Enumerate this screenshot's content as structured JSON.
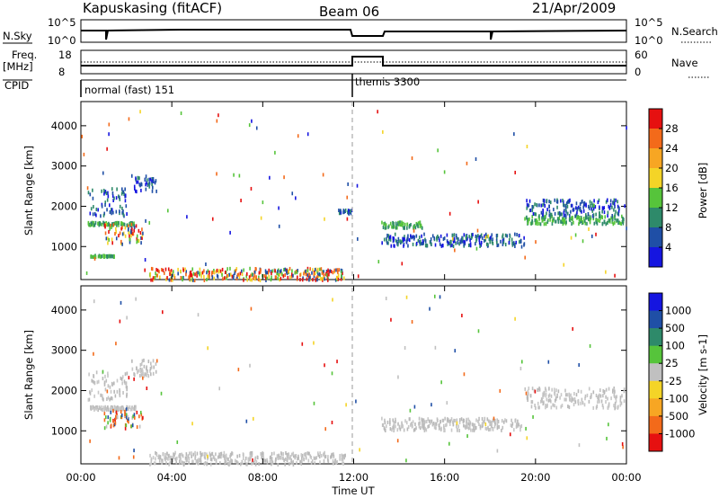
{
  "header": {
    "station": "Kapuskasing (fitACF)",
    "beam": "Beam 06",
    "date": "21/Apr/2009"
  },
  "strips": {
    "noise": {
      "left_label": "N.Sky",
      "right_label": "N.Search",
      "left_ticks": [
        "10^5",
        "10^0"
      ],
      "right_ticks": [
        "10^5",
        "10^0"
      ]
    },
    "freq": {
      "left_label": "Freq.",
      "left_units": "[MHz]",
      "right_label": "Nave",
      "left_ticks": [
        "18",
        "8"
      ],
      "right_ticks": [
        "60",
        "0"
      ]
    },
    "cpid": {
      "label": "CPID",
      "modes": [
        {
          "name": "normal (fast) 151",
          "start_hour": 0
        },
        {
          "name": "themis 3300",
          "start_hour": 12
        }
      ]
    }
  },
  "chart_data": [
    {
      "type": "scatter",
      "panel": "power",
      "ylabel": "Slant Range [km]",
      "yticks": [
        "4000",
        "3000",
        "2000",
        "1000"
      ],
      "ylim": [
        180,
        4600
      ],
      "xlim": [
        0,
        24
      ],
      "colorbar_label": "Power [dB]",
      "colorbar_ticks": [
        "28",
        "24",
        "20",
        "16",
        "12",
        "8",
        "4"
      ],
      "colorbar_colors": [
        "#e61010",
        "#f36a1a",
        "#f7a623",
        "#f4d427",
        "#56c43b",
        "#2e8a6a",
        "#1f4fa6",
        "#1515e0"
      ],
      "series": [
        {
          "x": [
            0.3,
            2.4
          ],
          "y": [
            1560,
            1640
          ],
          "level": "green"
        },
        {
          "x": [
            0.3,
            2.0
          ],
          "y": [
            1800,
            2500
          ],
          "level": "blue"
        },
        {
          "x": [
            2.2,
            3.3
          ],
          "y": [
            2400,
            2800
          ],
          "level": "blue"
        },
        {
          "x": [
            1.0,
            2.7
          ],
          "y": [
            1100,
            1600
          ],
          "level": "mixed"
        },
        {
          "x": [
            0.4,
            1.5
          ],
          "y": [
            780,
            820
          ],
          "level": "green"
        },
        {
          "x": [
            3.0,
            11.6
          ],
          "y": [
            200,
            500
          ],
          "level": "mixed"
        },
        {
          "x": [
            11.3,
            11.9
          ],
          "y": [
            1850,
            1950
          ],
          "level": "blue"
        },
        {
          "x": [
            13.2,
            19.5
          ],
          "y": [
            1050,
            1350
          ],
          "level": "blue"
        },
        {
          "x": [
            13.2,
            15.0
          ],
          "y": [
            1500,
            1650
          ],
          "level": "green"
        },
        {
          "x": [
            19.5,
            23.9
          ],
          "y": [
            1600,
            1800
          ],
          "level": "green"
        },
        {
          "x": [
            19.5,
            23.9
          ],
          "y": [
            1800,
            2200
          ],
          "level": "blue"
        }
      ]
    },
    {
      "type": "scatter",
      "panel": "velocity",
      "ylabel": "Slant Range [km]",
      "yticks": [
        "4000",
        "3000",
        "2000",
        "1000"
      ],
      "xticks": [
        "00:00",
        "04:00",
        "08:00",
        "12:00",
        "16:00",
        "20:00",
        "00:00"
      ],
      "xlabel": "Time UT",
      "ylim": [
        180,
        4600
      ],
      "xlim": [
        0,
        24
      ],
      "colorbar_label": "Velocity [m s-1]",
      "colorbar_ticks": [
        "1000",
        "500",
        "100",
        "25",
        "-25",
        "-100",
        "-500",
        "-1000"
      ],
      "colorbar_colors": [
        "#1515e0",
        "#1f4fa6",
        "#2e8a6a",
        "#56c43b",
        "#c0c0c0",
        "#f4d427",
        "#f7a623",
        "#f36a1a",
        "#e61010"
      ],
      "series": [
        {
          "x": [
            0.3,
            2.4
          ],
          "y": [
            1560,
            1640
          ],
          "level": "ground"
        },
        {
          "x": [
            0.3,
            2.0
          ],
          "y": [
            1800,
            2500
          ],
          "level": "ground"
        },
        {
          "x": [
            2.2,
            3.3
          ],
          "y": [
            2400,
            2800
          ],
          "level": "ground"
        },
        {
          "x": [
            1.0,
            2.7
          ],
          "y": [
            1100,
            1600
          ],
          "level": "mixed"
        },
        {
          "x": [
            3.0,
            11.6
          ],
          "y": [
            200,
            500
          ],
          "level": "ground"
        },
        {
          "x": [
            13.2,
            19.5
          ],
          "y": [
            1050,
            1350
          ],
          "level": "ground"
        },
        {
          "x": [
            19.5,
            23.9
          ],
          "y": [
            1600,
            2100
          ],
          "level": "ground"
        }
      ]
    }
  ]
}
